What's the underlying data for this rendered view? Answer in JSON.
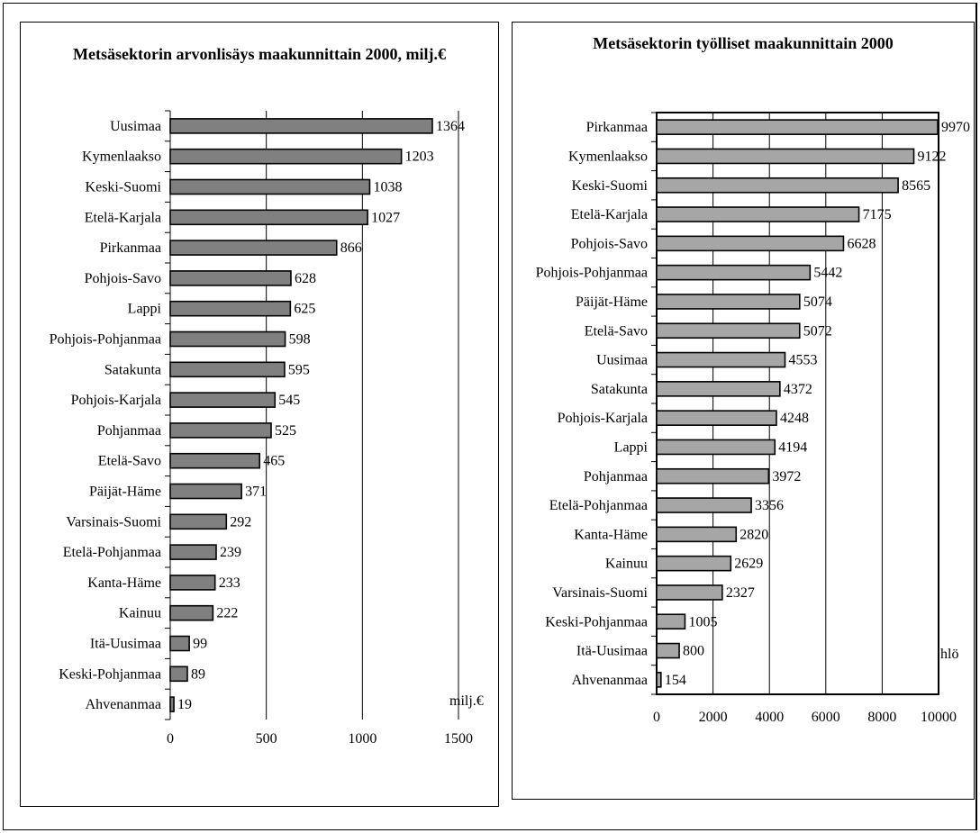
{
  "chart_data": [
    {
      "type": "bar",
      "orientation": "horizontal",
      "title": "Metsäsektorin arvonlisäys maakunnittain 2000, milj.€",
      "unit_label": "milj.€",
      "categories": [
        "Uusimaa",
        "Kymenlaakso",
        "Keski-Suomi",
        "Etelä-Karjala",
        "Pirkanmaa",
        "Pohjois-Savo",
        "Lappi",
        "Pohjois-Pohjanmaa",
        "Satakunta",
        "Pohjois-Karjala",
        "Pohjanmaa",
        "Etelä-Savo",
        "Päijät-Häme",
        "Varsinais-Suomi",
        "Etelä-Pohjanmaa",
        "Kanta-Häme",
        "Kainuu",
        "Itä-Uusimaa",
        "Keski-Pohjanmaa",
        "Ahvenanmaa"
      ],
      "values": [
        1364,
        1203,
        1038,
        1027,
        866,
        628,
        625,
        598,
        595,
        545,
        525,
        465,
        371,
        292,
        239,
        233,
        222,
        99,
        89,
        19
      ],
      "value_labels": [
        "1364",
        "1203",
        "1038",
        "1027",
        "866",
        "628",
        "625",
        "598",
        "595",
        "545",
        "525",
        "465",
        "371",
        "292",
        "239",
        "233",
        "222",
        "99",
        "89",
        "19"
      ],
      "xlim": [
        0,
        1500
      ],
      "ticks": [
        0,
        500,
        1000,
        1500
      ],
      "tick_labels": [
        "0",
        "500",
        "1000",
        "1500"
      ],
      "grid": true,
      "bar_color": "#808080"
    },
    {
      "type": "bar",
      "orientation": "horizontal",
      "title": "Metsäsektorin työlliset maakunnittain 2000",
      "unit_label": "hlö",
      "categories": [
        "Pirkanmaa",
        "Kymenlaakso",
        "Keski-Suomi",
        "Etelä-Karjala",
        "Pohjois-Savo",
        "Pohjois-Pohjanmaa",
        "Päijät-Häme",
        "Etelä-Savo",
        "Uusimaa",
        "Satakunta",
        "Pohjois-Karjala",
        "Lappi",
        "Pohjanmaa",
        "Etelä-Pohjanmaa",
        "Kanta-Häme",
        "Kainuu",
        "Varsinais-Suomi",
        "Keski-Pohjanmaa",
        "Itä-Uusimaa",
        "Ahvenanmaa"
      ],
      "values": [
        9970,
        9122,
        8565,
        7175,
        6628,
        5442,
        5074,
        5072,
        4553,
        4372,
        4248,
        4194,
        3972,
        3356,
        2820,
        2629,
        2327,
        1005,
        800,
        154
      ],
      "value_labels": [
        "9970",
        "9122",
        "8565",
        "7175",
        "6628",
        "5442",
        "5074",
        "5072",
        "4553",
        "4372",
        "4248",
        "4194",
        "3972",
        "3356",
        "2820",
        "2629",
        "2327",
        "1005",
        "800",
        "154"
      ],
      "xlim": [
        0,
        10000
      ],
      "ticks": [
        0,
        2000,
        4000,
        6000,
        8000,
        10000
      ],
      "tick_labels": [
        "0",
        "2000",
        "4000",
        "6000",
        "8000",
        "10000"
      ],
      "grid": true,
      "bar_color": "#a6a6a6"
    }
  ]
}
